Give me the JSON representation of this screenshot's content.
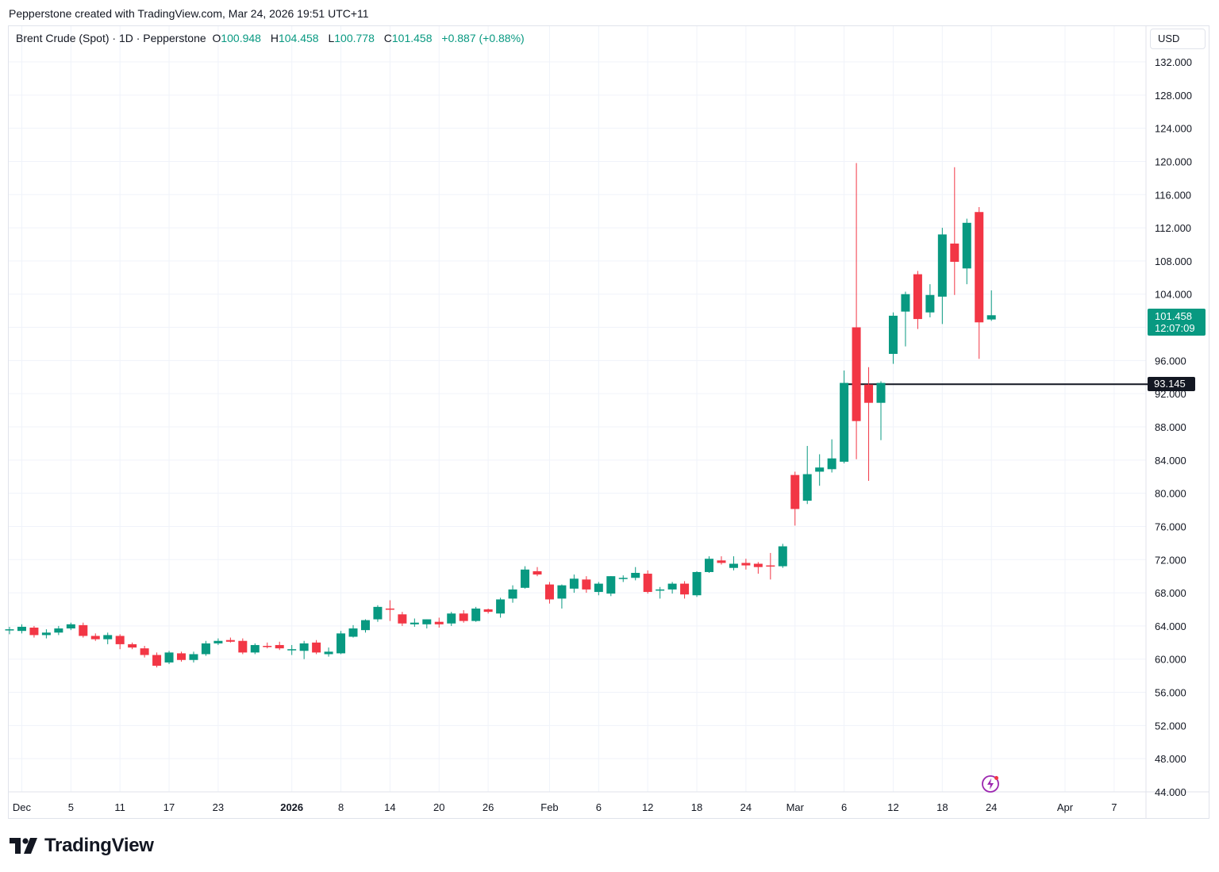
{
  "header": {
    "credit": "Pepperstone created with TradingView.com, Mar 24, 2026 19:51 UTC+11"
  },
  "legend": {
    "symbol": "Brent Crude (Spot) · 1D · Pepperstone",
    "o_label": "O",
    "o": "100.948",
    "h_label": "H",
    "h": "104.458",
    "l_label": "L",
    "l": "100.778",
    "c_label": "C",
    "c": "101.458",
    "change": "+0.887 (+0.88%)"
  },
  "currency": "USD",
  "last_price_tag": {
    "price": "101.458",
    "countdown": "12:07:09"
  },
  "level_line": {
    "label": "93.145",
    "value": 93.145
  },
  "brand": {
    "name": "TradingView"
  },
  "icons": {
    "brand": "tradingview-logo-icon",
    "bolt": "lightning-icon"
  },
  "colors": {
    "up": "#089981",
    "down": "#F23645",
    "grid": "#f0f3fa",
    "text": "#131722"
  },
  "chart_data": {
    "type": "candlestick",
    "title": "Brent Crude (Spot) · 1D · Pepperstone",
    "ylim": [
      44,
      134
    ],
    "y_ticks": [
      "132.000",
      "128.000",
      "124.000",
      "120.000",
      "116.000",
      "112.000",
      "108.000",
      "104.000",
      "100.000",
      "96.000",
      "92.000",
      "88.000",
      "84.000",
      "80.000",
      "76.000",
      "72.000",
      "68.000",
      "64.000",
      "60.000",
      "56.000",
      "52.000",
      "48.000",
      "44.000"
    ],
    "x_ticks": [
      {
        "label": "Dec",
        "slot": 1
      },
      {
        "label": "5",
        "slot": 5
      },
      {
        "label": "11",
        "slot": 9
      },
      {
        "label": "17",
        "slot": 13
      },
      {
        "label": "23",
        "slot": 17
      },
      {
        "label": "2026",
        "slot": 23,
        "bold": true
      },
      {
        "label": "8",
        "slot": 27
      },
      {
        "label": "14",
        "slot": 31
      },
      {
        "label": "20",
        "slot": 35
      },
      {
        "label": "26",
        "slot": 39
      },
      {
        "label": "Feb",
        "slot": 44
      },
      {
        "label": "6",
        "slot": 48
      },
      {
        "label": "12",
        "slot": 52
      },
      {
        "label": "18",
        "slot": 56
      },
      {
        "label": "24",
        "slot": 60
      },
      {
        "label": "Mar",
        "slot": 64
      },
      {
        "label": "6",
        "slot": 68
      },
      {
        "label": "12",
        "slot": 72
      },
      {
        "label": "18",
        "slot": 76
      },
      {
        "label": "24",
        "slot": 80
      },
      {
        "label": "Apr",
        "slot": 86
      },
      {
        "label": "7",
        "slot": 90
      }
    ],
    "candles": [
      {
        "o": 63.5,
        "h": 63.9,
        "l": 63.0,
        "c": 63.6
      },
      {
        "o": 63.4,
        "h": 64.2,
        "l": 63.1,
        "c": 63.9
      },
      {
        "o": 63.8,
        "h": 64.0,
        "l": 62.6,
        "c": 62.9
      },
      {
        "o": 62.9,
        "h": 63.6,
        "l": 62.5,
        "c": 63.2
      },
      {
        "o": 63.2,
        "h": 64.0,
        "l": 62.9,
        "c": 63.7
      },
      {
        "o": 63.7,
        "h": 64.4,
        "l": 63.5,
        "c": 64.2
      },
      {
        "o": 64.1,
        "h": 64.4,
        "l": 62.6,
        "c": 62.8
      },
      {
        "o": 62.8,
        "h": 63.1,
        "l": 62.2,
        "c": 62.4
      },
      {
        "o": 62.4,
        "h": 63.2,
        "l": 61.8,
        "c": 62.9
      },
      {
        "o": 62.8,
        "h": 63.0,
        "l": 61.2,
        "c": 61.8
      },
      {
        "o": 61.8,
        "h": 62.0,
        "l": 61.2,
        "c": 61.4
      },
      {
        "o": 61.3,
        "h": 61.6,
        "l": 60.2,
        "c": 60.5
      },
      {
        "o": 60.5,
        "h": 60.8,
        "l": 59.0,
        "c": 59.2
      },
      {
        "o": 59.6,
        "h": 61.0,
        "l": 59.4,
        "c": 60.8
      },
      {
        "o": 60.7,
        "h": 60.9,
        "l": 59.7,
        "c": 59.9
      },
      {
        "o": 59.9,
        "h": 60.9,
        "l": 59.6,
        "c": 60.6
      },
      {
        "o": 60.6,
        "h": 62.2,
        "l": 60.4,
        "c": 61.9
      },
      {
        "o": 61.9,
        "h": 62.5,
        "l": 61.7,
        "c": 62.2
      },
      {
        "o": 62.3,
        "h": 62.6,
        "l": 62.0,
        "c": 62.1
      },
      {
        "o": 62.2,
        "h": 62.5,
        "l": 60.6,
        "c": 60.8
      },
      {
        "o": 60.8,
        "h": 61.9,
        "l": 60.6,
        "c": 61.7
      },
      {
        "o": 61.6,
        "h": 62.0,
        "l": 61.3,
        "c": 61.5
      },
      {
        "o": 61.7,
        "h": 62.1,
        "l": 61.1,
        "c": 61.3
      },
      {
        "o": 61.1,
        "h": 61.7,
        "l": 60.5,
        "c": 61.2
      },
      {
        "o": 61.0,
        "h": 62.2,
        "l": 60.0,
        "c": 61.9
      },
      {
        "o": 62.0,
        "h": 62.3,
        "l": 60.6,
        "c": 60.8
      },
      {
        "o": 60.6,
        "h": 61.4,
        "l": 60.3,
        "c": 60.9
      },
      {
        "o": 60.7,
        "h": 63.4,
        "l": 60.6,
        "c": 63.1
      },
      {
        "o": 62.7,
        "h": 64.1,
        "l": 62.6,
        "c": 63.7
      },
      {
        "o": 63.5,
        "h": 64.8,
        "l": 63.2,
        "c": 64.7
      },
      {
        "o": 64.8,
        "h": 66.5,
        "l": 64.5,
        "c": 66.3
      },
      {
        "o": 66.1,
        "h": 67.1,
        "l": 64.6,
        "c": 66.0
      },
      {
        "o": 65.4,
        "h": 65.7,
        "l": 64.0,
        "c": 64.3
      },
      {
        "o": 64.2,
        "h": 64.9,
        "l": 63.9,
        "c": 64.4
      },
      {
        "o": 64.2,
        "h": 64.8,
        "l": 63.7,
        "c": 64.8
      },
      {
        "o": 64.5,
        "h": 65.0,
        "l": 63.8,
        "c": 64.2
      },
      {
        "o": 64.3,
        "h": 65.7,
        "l": 64.0,
        "c": 65.5
      },
      {
        "o": 65.5,
        "h": 65.9,
        "l": 64.4,
        "c": 64.6
      },
      {
        "o": 64.6,
        "h": 66.3,
        "l": 64.5,
        "c": 66.1
      },
      {
        "o": 66.0,
        "h": 66.1,
        "l": 65.5,
        "c": 65.7
      },
      {
        "o": 65.5,
        "h": 67.4,
        "l": 65.0,
        "c": 67.2
      },
      {
        "o": 67.3,
        "h": 68.9,
        "l": 66.8,
        "c": 68.4
      },
      {
        "o": 68.6,
        "h": 71.2,
        "l": 68.5,
        "c": 70.8
      },
      {
        "o": 70.6,
        "h": 71.1,
        "l": 70.0,
        "c": 70.2
      },
      {
        "o": 69.0,
        "h": 69.3,
        "l": 66.7,
        "c": 67.2
      },
      {
        "o": 67.3,
        "h": 69.0,
        "l": 66.1,
        "c": 68.9
      },
      {
        "o": 68.5,
        "h": 70.2,
        "l": 68.0,
        "c": 69.7
      },
      {
        "o": 69.6,
        "h": 70.0,
        "l": 68.0,
        "c": 68.4
      },
      {
        "o": 68.1,
        "h": 69.3,
        "l": 67.7,
        "c": 69.1
      },
      {
        "o": 67.9,
        "h": 70.0,
        "l": 67.6,
        "c": 70.0
      },
      {
        "o": 69.7,
        "h": 70.1,
        "l": 69.3,
        "c": 69.8
      },
      {
        "o": 69.8,
        "h": 71.1,
        "l": 69.5,
        "c": 70.4
      },
      {
        "o": 70.3,
        "h": 70.7,
        "l": 67.9,
        "c": 68.1
      },
      {
        "o": 68.3,
        "h": 68.7,
        "l": 67.3,
        "c": 68.4
      },
      {
        "o": 68.4,
        "h": 69.3,
        "l": 67.9,
        "c": 69.1
      },
      {
        "o": 69.1,
        "h": 69.4,
        "l": 67.3,
        "c": 67.8
      },
      {
        "o": 67.7,
        "h": 70.6,
        "l": 67.5,
        "c": 70.5
      },
      {
        "o": 70.5,
        "h": 72.4,
        "l": 70.4,
        "c": 72.1
      },
      {
        "o": 71.9,
        "h": 72.4,
        "l": 71.4,
        "c": 71.6
      },
      {
        "o": 71.0,
        "h": 72.4,
        "l": 70.7,
        "c": 71.5
      },
      {
        "o": 71.6,
        "h": 72.1,
        "l": 70.8,
        "c": 71.3
      },
      {
        "o": 71.5,
        "h": 71.7,
        "l": 70.3,
        "c": 71.1
      },
      {
        "o": 71.3,
        "h": 72.8,
        "l": 69.6,
        "c": 71.2
      },
      {
        "o": 71.2,
        "h": 73.9,
        "l": 71.0,
        "c": 73.6
      },
      {
        "o": 82.2,
        "h": 82.6,
        "l": 76.1,
        "c": 78.1
      },
      {
        "o": 79.1,
        "h": 85.7,
        "l": 78.7,
        "c": 82.3
      },
      {
        "o": 82.6,
        "h": 84.7,
        "l": 80.9,
        "c": 83.1
      },
      {
        "o": 82.9,
        "h": 86.5,
        "l": 82.5,
        "c": 84.2
      },
      {
        "o": 83.8,
        "h": 94.8,
        "l": 83.6,
        "c": 93.3
      },
      {
        "o": 100.0,
        "h": 119.8,
        "l": 84.1,
        "c": 88.7
      },
      {
        "o": 93.1,
        "h": 95.2,
        "l": 81.5,
        "c": 90.9
      },
      {
        "o": 90.9,
        "h": 93.5,
        "l": 86.4,
        "c": 93.3
      },
      {
        "o": 96.8,
        "h": 101.8,
        "l": 95.6,
        "c": 101.4
      },
      {
        "o": 101.9,
        "h": 104.3,
        "l": 97.7,
        "c": 104.0
      },
      {
        "o": 106.4,
        "h": 106.8,
        "l": 99.8,
        "c": 101.0
      },
      {
        "o": 101.8,
        "h": 105.2,
        "l": 101.2,
        "c": 103.9
      },
      {
        "o": 103.7,
        "h": 112.0,
        "l": 100.4,
        "c": 111.2
      },
      {
        "o": 110.1,
        "h": 119.3,
        "l": 103.9,
        "c": 107.9
      },
      {
        "o": 107.1,
        "h": 113.1,
        "l": 105.2,
        "c": 112.6
      },
      {
        "o": 113.9,
        "h": 114.5,
        "l": 96.2,
        "c": 100.6
      },
      {
        "o": 100.948,
        "h": 104.458,
        "l": 100.778,
        "c": 101.458
      }
    ]
  }
}
